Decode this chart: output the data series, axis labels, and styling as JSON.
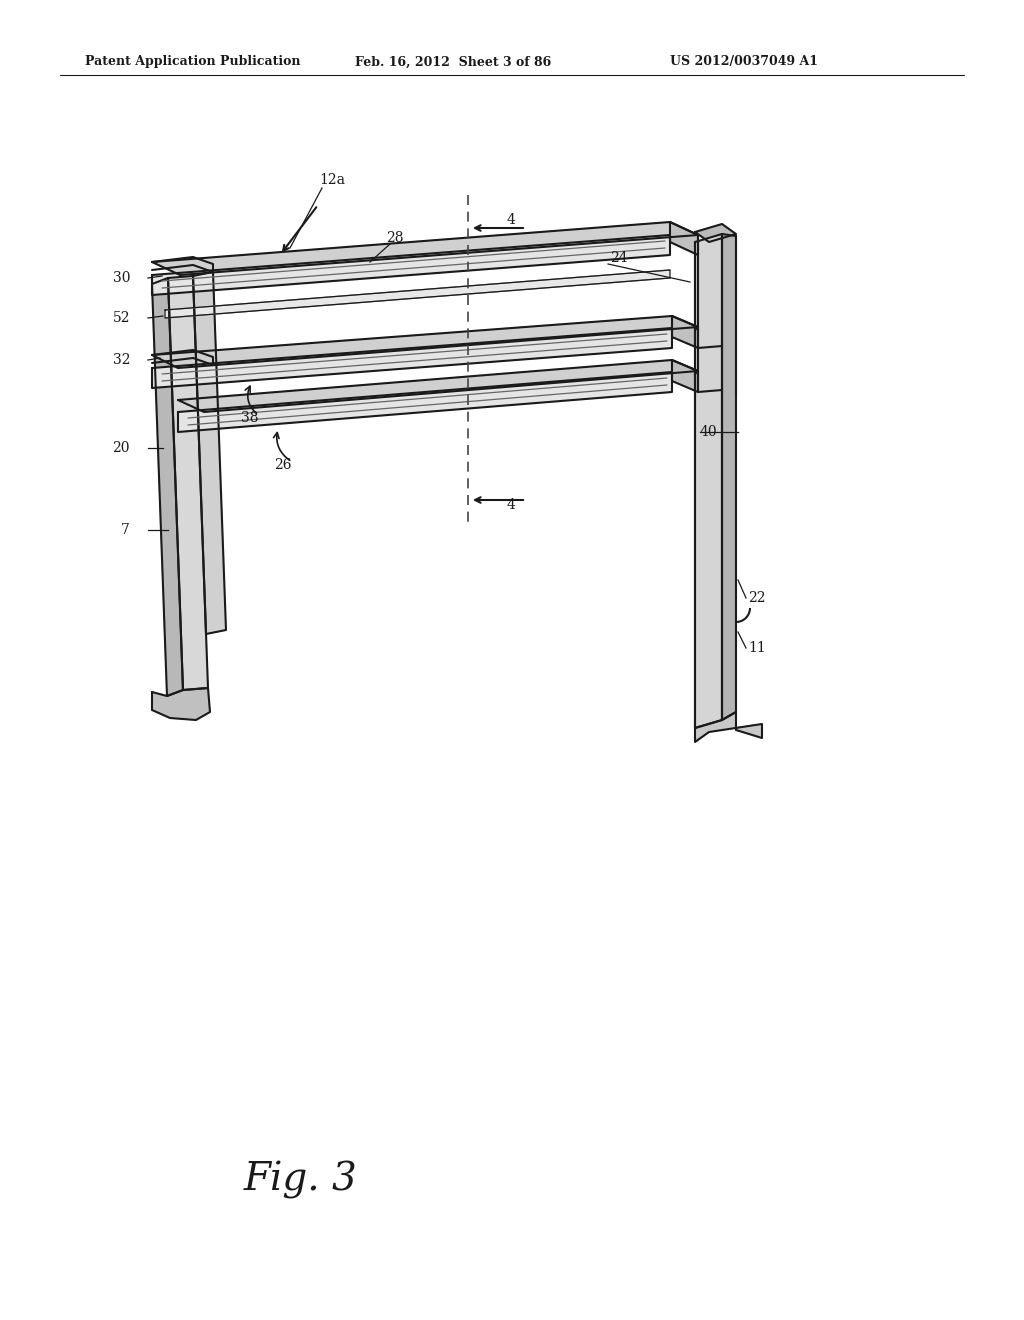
{
  "bg_color": "#ffffff",
  "line_color": "#1a1a1a",
  "header_text": "Patent Application Publication",
  "header_date": "Feb. 16, 2012  Sheet 3 of 86",
  "header_patent": "US 2012/0037049 A1",
  "fig_label": "Fig. 3"
}
